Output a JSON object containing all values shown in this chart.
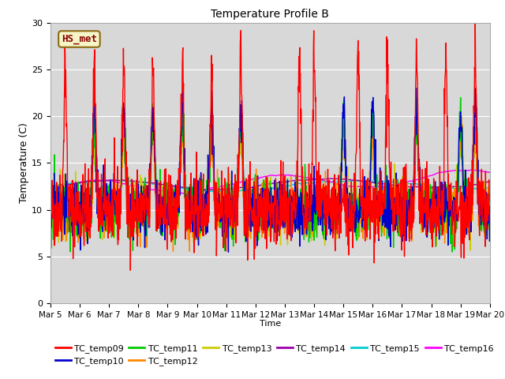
{
  "title": "Temperature Profile B",
  "xlabel": "Time",
  "ylabel": "Temperature (C)",
  "ylim": [
    0,
    30
  ],
  "xlim": [
    0,
    360
  ],
  "background_color": "#d8d8d8",
  "grid_color": "#ffffff",
  "annotation_text": "HS_met",
  "annotation_color": "#8b0000",
  "annotation_bg": "#f5f5c8",
  "series_colors": {
    "TC_temp09": "#ff0000",
    "TC_temp10": "#0000cc",
    "TC_temp11": "#00cc00",
    "TC_temp12": "#ff8800",
    "TC_temp13": "#cccc00",
    "TC_temp14": "#9900aa",
    "TC_temp15": "#00cccc",
    "TC_temp16": "#ff00ff"
  },
  "xtick_labels": [
    "Mar 5",
    "Mar 6",
    "Mar 7",
    "Mar 8",
    "Mar 9",
    "Mar 10",
    "Mar 11",
    "Mar 12",
    "Mar 13",
    "Mar 14",
    "Mar 15",
    "Mar 16",
    "Mar 17",
    "Mar 18",
    "Mar 19",
    "Mar 20"
  ],
  "xtick_positions": [
    0,
    24,
    48,
    72,
    96,
    120,
    144,
    168,
    192,
    216,
    240,
    264,
    288,
    312,
    336,
    360
  ],
  "ytick_labels": [
    "0",
    "5",
    "10",
    "15",
    "20",
    "25",
    "30"
  ],
  "ytick_positions": [
    0,
    5,
    10,
    15,
    20,
    25,
    30
  ],
  "n_points": 1441,
  "seed": 42
}
